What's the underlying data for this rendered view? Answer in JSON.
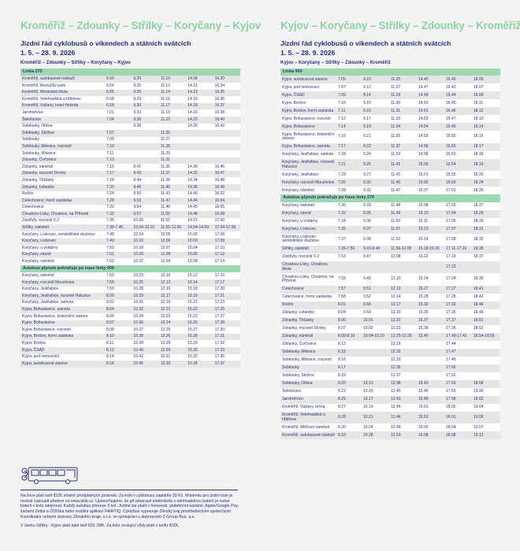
{
  "left": {
    "title": "Kroměříž – Zdounky – Střílky – Koryčany – Kyjov",
    "subtitle": "Jízdní řád cyklobusů o víkendech a státních svátcích",
    "dates": "1. 5. – 28. 9. 2026",
    "route": "Kroměříž – Zdounky – Střílky – Koryčany – Kyjov",
    "rows": [
      {
        "section": "Linka 270"
      },
      [
        "Kroměříž, autobusové nádraží",
        "6.50",
        "9.20",
        "11.10",
        "14.08",
        "16.30"
      ],
      [
        "Kroměříž, Bezručův park",
        "6.54",
        "9.25",
        "11.13",
        "14.12",
        "16.34"
      ],
      [
        "Kroměříž, Moravská škola",
        "6.55",
        "9.26",
        "11.14",
        "14.13",
        "16.35"
      ],
      [
        "Kroměříž, Velehradská u hřbitova",
        "6.58",
        "9.29",
        "11.16",
        "14.16",
        "16.36"
      ],
      [
        "Kroměříž, Vážany, hotel Hvězda",
        "6.59",
        "9.30",
        "11.17",
        "14.18",
        "16.37"
      ],
      [
        "Jarohněvice",
        "7.01",
        "9.33",
        "11.19",
        "14.20",
        "16.38"
      ],
      [
        "Šelešovice",
        "7.04",
        "9.36",
        "11.22",
        "14.23",
        "16.40"
      ],
      [
        "Soběsuky, Olšina",
        "",
        "9.38",
        "",
        "14.26",
        "16.42"
      ],
      [
        "Soběsuky, Skržice",
        "7.07",
        "",
        "11.25",
        "",
        ""
      ],
      [
        "Soběsuky",
        "7.09",
        "",
        "11.27",
        "",
        ""
      ],
      [
        "Soběsuky, Milovice, rozcestí",
        "7.10",
        "",
        "11.28",
        "",
        ""
      ],
      [
        "Soběsuky, Milovice",
        "7.11",
        "",
        "11.29",
        "",
        ""
      ],
      [
        "Zdounky, Cvrčovice",
        "7.13",
        "",
        "11.31",
        "",
        ""
      ],
      [
        "Zdounky, náměstí",
        "7.15",
        "9.41",
        "11.35",
        "14.30",
        "16.46"
      ],
      [
        "Zdounky, rozcestí Divoky",
        "7.17",
        "9.43",
        "11.37",
        "14.32",
        "16.47"
      ],
      [
        "Zdounky, Těšánky",
        "7.18",
        "9.44",
        "11.38",
        "14.34",
        "16.48"
      ],
      [
        "Zdounky, Lebedov",
        "7.20",
        "9.46",
        "11.40",
        "14.36",
        "16.49"
      ],
      [
        "Roštín",
        "7.24",
        "9.50",
        "11.43",
        "14.40",
        "16.52"
      ],
      [
        "Cetechovice, horní zastávka",
        "7.28",
        "9.53",
        "11.47",
        "14.44",
        "16.54"
      ],
      [
        "Cetechovice",
        "7.29",
        "9.54",
        "11.48",
        "14.45",
        "16.55"
      ],
      [
        "Chvalnov-Lísky, Chvalnov, na Příhoně",
        "7.32",
        "9.57",
        "11.50",
        "14.48",
        "16.58"
      ],
      [
        "Zástřizly, rozcestí 0.3",
        "7.35",
        "10.00",
        "11.52",
        "14.51",
        "17.00"
      ],
      [
        "Střílky, náměstí",
        "7.38-7.45",
        "10.04-10.10",
        "11.55-12.00",
        "14.54-14.59",
        "17.04-17.06"
      ],
      [
        "Koryčany, Lískovec, zemědělské družstvo",
        "7.48",
        "10.14",
        "12.05",
        "15.02",
        "17.08"
      ],
      [
        "Koryčany, Lískovec",
        "7.49",
        "10.16",
        "12.06",
        "15.03",
        "17.09"
      ],
      [
        "Koryčany, u vodárny",
        "7.50",
        "10.18",
        "12.07",
        "15.04",
        "17.10"
      ],
      [
        "Koryčany, závod",
        "7.51",
        "10.20",
        "12.08",
        "15.06",
        "17.12"
      ],
      [
        "Koryčany, náměstí",
        "7.52",
        "10.22",
        "12.09",
        "15.08",
        "17.14"
      ],
      {
        "section": "Autobus plynule pokračuje po trase linky 900"
      },
      [
        "Koryčany, náměstí",
        "7.53",
        "10.23",
        "12.10",
        "15.12",
        "17.15"
      ],
      [
        "Koryčany, rozcestí Mouchnice",
        "7.55",
        "10.25",
        "12.12",
        "15.14",
        "17.17"
      ],
      [
        "Koryčany, Jestřabice",
        "7.59",
        "10.28",
        "12.16",
        "15.18",
        "17.20"
      ],
      [
        "Koryčany, Jestřabice, rozcestí Haluzice",
        "8.00",
        "10.29",
        "12.17",
        "15.19",
        "17.21"
      ],
      [
        "Koryčany, Jestřabice, samota",
        "8.02",
        "10.31",
        "12.19",
        "15.21",
        "17.23"
      ],
      [
        "Kyjov, Bohuslavice, samota",
        "8.04",
        "10.32",
        "12.21",
        "15.22",
        "17.25"
      ],
      [
        "Kyjov, Bohuslavice, železniční stanice",
        "8.06",
        "10.34",
        "12.23",
        "15.23",
        "17.27"
      ],
      [
        "Kyjov, Bohuslavice",
        "8.07",
        "10.36",
        "12.24",
        "15.25",
        "17.28"
      ],
      [
        "Kyjov, Bohuslavice, rozcestí",
        "8.08",
        "10.37",
        "12.25",
        "15.27",
        "17.30"
      ],
      [
        "Kyjov, Boršov, horní zastávka",
        "8.10",
        "10.38",
        "12.26",
        "15.28",
        "17.31"
      ],
      [
        "Kyjov, Boršov",
        "8.11",
        "10.39",
        "12.28",
        "15.29",
        "17.32"
      ],
      [
        "Kyjov, ČSAD",
        "8.12",
        "10.40",
        "12.29",
        "15.30",
        "17.33"
      ],
      [
        "Kyjov, pod nemocnicí",
        "8.14",
        "10.42",
        "12.31",
        "15.32",
        "17.35"
      ],
      [
        "Kyjov, autobusová stanice",
        "8.16",
        "10.45",
        "12.33",
        "15.34",
        "17.37"
      ]
    ]
  },
  "right": {
    "title": "Kyjov – Koryčany – Střílky – Zdounky – Kroměříž",
    "subtitle": "Jízdní řád cyklobusů o víkendech a státních svátcích",
    "dates": "1. 5. – 28. 9. 2026",
    "route": "Kyjov – Koryčany – Střílky – Zdounky – Kroměříž",
    "rows": [
      {
        "section": "Linka 900"
      },
      [
        "Kyjov, autobusová stanice",
        "7.05",
        "9.10",
        "11.25",
        "14.45",
        "16.40",
        "18.05"
      ],
      [
        "Kyjov, pod nemocnicí",
        "7.07",
        "9.12",
        "11.27",
        "14.47",
        "16.42",
        "18.07"
      ],
      [
        "Kyjov, ČSAD",
        "7.09",
        "9.14",
        "11.29",
        "14.49",
        "16.44",
        "18.09"
      ],
      [
        "Kyjov, Boršov",
        "7.10",
        "9.15",
        "11.30",
        "14.50",
        "16.45",
        "18.11"
      ],
      [
        "Kyjov, Boršov, horní zastávka",
        "7.11",
        "9.16",
        "11.31",
        "14.51",
        "16.46",
        "18.12"
      ],
      [
        "Kyjov, Bohuslavice, rozcestí",
        "7.12",
        "9.17",
        "11.33",
        "14.52",
        "16.47",
        "18.13"
      ],
      [
        "Kyjov, Bohuslavice",
        "7.14",
        "9.19",
        "11.34",
        "14.54",
        "16.49",
        "18.14"
      ],
      [
        "Kyjov, Bohuslavice, železniční stanice",
        "7.16",
        "9.21",
        "11.35",
        "14.55",
        "16.50",
        "18.15"
      ],
      [
        "Kyjov, Bohuslavice, samota",
        "7.17",
        "9.22",
        "11.37",
        "14.56",
        "16.52",
        "18.17"
      ],
      [
        "Koryčany, Jestřabice, samota",
        "7.18",
        "9.24",
        "11.39",
        "14.58",
        "16.53",
        "18.18"
      ],
      [
        "Koryčany, Jestřabice, rozcestí Haluzice",
        "7.21",
        "9.26",
        "11.41",
        "15.00",
        "16.54",
        "18.19"
      ],
      [
        "Koryčany, Jestřabice",
        "7.23",
        "9.27",
        "11.42",
        "15.01",
        "16.55",
        "18.20"
      ],
      [
        "Koryčany, rozcestí Mouchnice",
        "7.26",
        "9.30",
        "11.45",
        "15.05",
        "16.59",
        "18.24"
      ],
      [
        "Koryčany, náměstí",
        "7.28",
        "9.32",
        "11.47",
        "15.07",
        "17.01",
        "18.26"
      ],
      {
        "section": "Autobus plynule pokračuje po trase linky 270"
      },
      [
        "Koryčany, náměstí",
        "7.30",
        "9.33",
        "11.48",
        "15.08",
        "17.02",
        "18.27"
      ],
      [
        "Koryčany, závod",
        "7.32",
        "9.35",
        "11.49",
        "15.10",
        "17.04",
        "18.29"
      ],
      [
        "Koryčany, u vodárny",
        "7.34",
        "9.36",
        "11.50",
        "15.11",
        "17.05",
        "18.30"
      ],
      [
        "Koryčany, Lískovec",
        "7.35",
        "9.37",
        "11.51",
        "15.13",
        "17.07",
        "18.31"
      ],
      [
        "Koryčany, Lískovec, zemědělské družstvo",
        "7.37",
        "9.38",
        "11.52",
        "15.14",
        "17.08",
        "18.32"
      ],
      [
        "Střílky, náměstí",
        "7.39-7.50",
        "9.43-9.44",
        "11.56-12.05",
        "15.18-15.20",
        "17.11-17.16",
        "18.35"
      ],
      [
        "Zástřizly, rozcestí 0.3",
        "7.53",
        "9.47",
        "12.08",
        "15.22",
        "17.19",
        "18.37"
      ],
      [
        "Chvalnov-Lísky, Chvalnov, škola",
        "",
        "",
        "",
        "",
        "17.22",
        ""
      ],
      [
        "Chvalnov-Lísky, Chvalnov, na Příhoně",
        "7.55",
        "9.49",
        "12.10",
        "15.24",
        "17.24",
        "18.39"
      ],
      [
        "Cetechovice",
        "7.57",
        "9.51",
        "12.13",
        "15.27",
        "17.27",
        "18.41"
      ],
      [
        "Cetechovice, horní zastávka",
        "7.58",
        "9.52",
        "12.14",
        "15.28",
        "17.28",
        "18.42"
      ],
      [
        "Roštín",
        "8.01",
        "9.56",
        "12.17",
        "15.32",
        "17.32",
        "18.46"
      ],
      [
        "Zdounky, Lebedov",
        "8.04",
        "9.59",
        "12.20",
        "15.35",
        "17.35",
        "18.49"
      ],
      [
        "Zdounky, Těšánky",
        "8.06",
        "10.01",
        "12.22",
        "15.37",
        "17.37",
        "18.51"
      ],
      [
        "Zdounky, rozcestí Divoky",
        "8.07",
        "10.02",
        "12.23",
        "15.38",
        "17.39",
        "18.52"
      ],
      [
        "Zdounky, náměstí",
        "8.09-8.10",
        "10.04-10.10",
        "12.25-12.26",
        "15.40",
        "17.40-17.41",
        "18.54-18.55"
      ],
      [
        "Zdounky, Cvrčovice",
        "8.13",
        "",
        "12.29",
        "",
        "17.44",
        ""
      ],
      [
        "Soběsuky, Milovice",
        "8.15",
        "",
        "12.32",
        "",
        "17.47",
        ""
      ],
      [
        "Soběsuky, Milovice, rozcestí",
        "8.16",
        "",
        "12.33",
        "",
        "17.49",
        ""
      ],
      [
        "Soběsuky",
        "8.17",
        "",
        "12.35",
        "",
        "17.50",
        ""
      ],
      [
        "Soběsuky, Skržice",
        "8.19",
        "",
        "12.37",
        "",
        "17.52",
        ""
      ],
      [
        "Soběsuky, Olšina",
        "8.20",
        "10.13",
        "12.38",
        "15.43",
        "17.53",
        "18.58"
      ],
      [
        "Šelešovice",
        "8.22",
        "10.15",
        "12.40",
        "15.46",
        "17.55",
        "19.00"
      ],
      [
        "Jarohněvice",
        "8.25",
        "10.17",
        "12.43",
        "15.49",
        "17.58",
        "19.02"
      ],
      [
        "Kroměříž, Vážany, točna",
        "8.27",
        "10.19",
        "12.45",
        "15.51",
        "18.00",
        "19.04"
      ],
      [
        "Kroměříž, Velehradská u hřbitova",
        "8.28",
        "10.21",
        "12.46",
        "15.53",
        "18.01",
        "19.05"
      ],
      [
        "Kroměříž, Miličovo náměstí",
        "8.30",
        "10.24",
        "12.49",
        "15.55",
        "18.04",
        "19.07"
      ],
      [
        "Kroměříž, autobusové nádraží",
        "8.33",
        "10.28",
        "12.53",
        "15.58",
        "18.08",
        "19.12"
      ]
    ]
  },
  "footer": {
    "icon": "bus-with-bike-icon",
    "p1": "Na lince platí tarif IDZK včetně předplatných jízdenek. Za kolo v cyklobusu zaplatíte 30 Kč. Místenku pro jízdní kolo je možné zakoupit předem na www.idzk.cz. Upozorňujeme, že při přepravě elektrokola s odnímatelnou baterií je nutné baterii z kola odejmout. Každý autobus převeze 5 kol. Jízdné lze platit v hotovosti, platebními kartami, Apple/Google Pay, kartami Zetka a ODIŚka nebo mobilní aplikací FAIRTIQ. Cyklobus vypravuje Zlínský kraj prostřednictvím společnosti Koordinátor veřejné dopravy Zlínského kraje, s.r.o. ve spolupráci s dopravcem Z-Group Bus, a.s.",
    "p2": "V úseku Střílky - Kyjov platí také tarif IDS JMK. Za kolo cestující vždy platí v tarifu IDZK."
  },
  "colors": {
    "accent": "#8fd1a3",
    "text": "#2b3175",
    "section": "#9fd8b0"
  }
}
